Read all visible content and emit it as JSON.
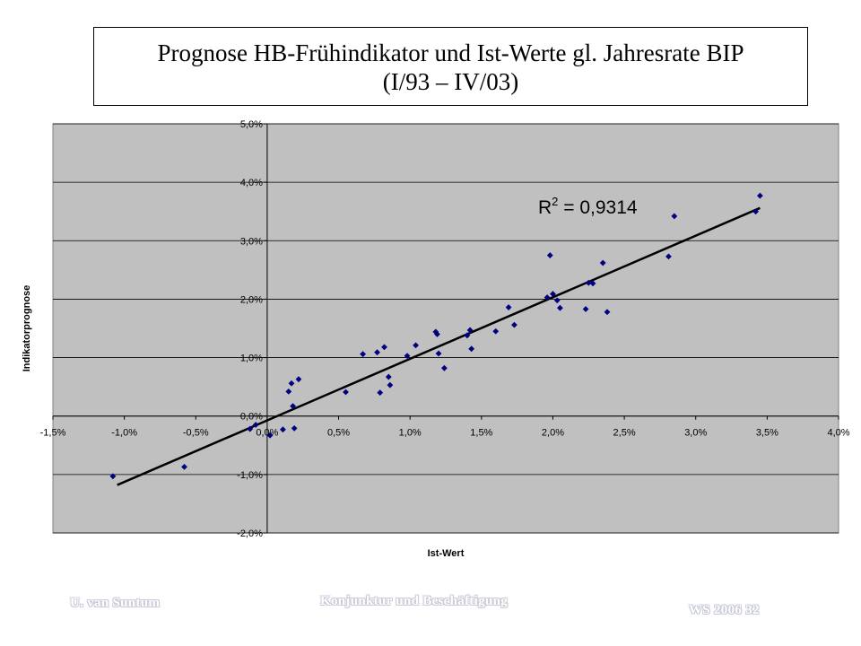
{
  "chart_data": {
    "type": "scatter",
    "title_line1": "Prognose HB-Frühindikator und Ist-Werte gl. Jahresrate BIP",
    "title_line2": "(I/93 – IV/03)",
    "xlabel": "Ist-Wert",
    "ylabel": "Indikatorprognose",
    "xlim": [
      -1.5,
      4.0
    ],
    "ylim": [
      -2.0,
      5.0
    ],
    "x_ticks": [
      -1.5,
      -1.0,
      -0.5,
      0.0,
      0.5,
      1.0,
      1.5,
      2.0,
      2.5,
      3.0,
      3.5,
      4.0
    ],
    "y_ticks": [
      -2.0,
      -1.0,
      0.0,
      1.0,
      2.0,
      3.0,
      4.0,
      5.0
    ],
    "x_tick_labels": [
      "-1,5%",
      "-1,0%",
      "-0,5%",
      "0,0%",
      "0,5%",
      "1,0%",
      "1,5%",
      "2,0%",
      "2,5%",
      "3,0%",
      "3,5%",
      "4,0%"
    ],
    "y_tick_labels": [
      "-2,0%",
      "-1,0%",
      "0,0%",
      "1,0%",
      "2,0%",
      "3,0%",
      "4,0%",
      "5,0%"
    ],
    "grid": true,
    "plot_background": "#c0c0c0",
    "marker_color": "#000080",
    "trendline": {
      "type": "linear",
      "x_range": [
        -1.05,
        3.45
      ],
      "y_range": [
        -1.18,
        3.56
      ],
      "r_squared_label": "R",
      "r_squared_sup": "2",
      "r_squared_value": " = 0,9314",
      "color": "#000000"
    },
    "points": [
      {
        "x": -1.08,
        "y": -1.03
      },
      {
        "x": -0.58,
        "y": -0.87
      },
      {
        "x": -0.12,
        "y": -0.22
      },
      {
        "x": -0.08,
        "y": -0.15
      },
      {
        "x": 0.02,
        "y": -0.33
      },
      {
        "x": 0.11,
        "y": -0.23
      },
      {
        "x": 0.15,
        "y": 0.42
      },
      {
        "x": 0.17,
        "y": 0.56
      },
      {
        "x": 0.18,
        "y": 0.17
      },
      {
        "x": 0.19,
        "y": -0.21
      },
      {
        "x": 0.22,
        "y": 0.63
      },
      {
        "x": 0.55,
        "y": 0.41
      },
      {
        "x": 0.67,
        "y": 1.06
      },
      {
        "x": 0.77,
        "y": 1.09
      },
      {
        "x": 0.79,
        "y": 0.4
      },
      {
        "x": 0.82,
        "y": 1.18
      },
      {
        "x": 0.85,
        "y": 0.67
      },
      {
        "x": 0.86,
        "y": 0.53
      },
      {
        "x": 0.98,
        "y": 1.03
      },
      {
        "x": 1.04,
        "y": 1.21
      },
      {
        "x": 1.18,
        "y": 1.44
      },
      {
        "x": 1.19,
        "y": 1.4
      },
      {
        "x": 1.2,
        "y": 1.07
      },
      {
        "x": 1.24,
        "y": 0.82
      },
      {
        "x": 1.4,
        "y": 1.38
      },
      {
        "x": 1.42,
        "y": 1.47
      },
      {
        "x": 1.43,
        "y": 1.15
      },
      {
        "x": 1.6,
        "y": 1.45
      },
      {
        "x": 1.69,
        "y": 1.86
      },
      {
        "x": 1.73,
        "y": 1.56
      },
      {
        "x": 1.96,
        "y": 2.03
      },
      {
        "x": 1.98,
        "y": 2.75
      },
      {
        "x": 2.0,
        "y": 2.09
      },
      {
        "x": 2.03,
        "y": 1.98
      },
      {
        "x": 2.05,
        "y": 1.85
      },
      {
        "x": 2.23,
        "y": 1.83
      },
      {
        "x": 2.25,
        "y": 2.28
      },
      {
        "x": 2.28,
        "y": 2.27
      },
      {
        "x": 2.35,
        "y": 2.62
      },
      {
        "x": 2.38,
        "y": 1.78
      },
      {
        "x": 2.81,
        "y": 2.73
      },
      {
        "x": 2.85,
        "y": 3.42
      },
      {
        "x": 3.42,
        "y": 3.5
      },
      {
        "x": 3.45,
        "y": 3.77
      }
    ]
  },
  "footer": {
    "author": "U. van Suntum",
    "course": "Konjunktur und Beschäftigung",
    "semester": "WS 2006 32"
  }
}
